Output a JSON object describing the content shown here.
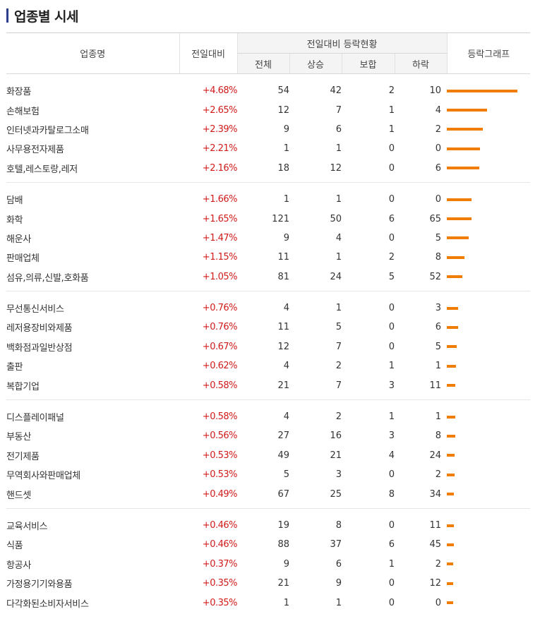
{
  "page_title": "업종별 시세",
  "table": {
    "col_name": "업종명",
    "col_change": "전일대비",
    "col_group": "전일대비 등락현황",
    "col_total": "전체",
    "col_up": "상승",
    "col_flat": "보합",
    "col_down": "하락",
    "col_graph": "등락그래프",
    "groups": [
      [
        {
          "name": "화장품",
          "change": "+4.68%",
          "total": "54",
          "up": "42",
          "flat": "2",
          "down": "10",
          "pct": 4.68
        },
        {
          "name": "손해보험",
          "change": "+2.65%",
          "total": "12",
          "up": "7",
          "flat": "1",
          "down": "4",
          "pct": 2.65
        },
        {
          "name": "인터넷과카탈로그소매",
          "change": "+2.39%",
          "total": "9",
          "up": "6",
          "flat": "1",
          "down": "2",
          "pct": 2.39
        },
        {
          "name": "사무용전자제품",
          "change": "+2.21%",
          "total": "1",
          "up": "1",
          "flat": "0",
          "down": "0",
          "pct": 2.21
        },
        {
          "name": "호텔,레스토랑,레저",
          "change": "+2.16%",
          "total": "18",
          "up": "12",
          "flat": "0",
          "down": "6",
          "pct": 2.16
        }
      ],
      [
        {
          "name": "담배",
          "change": "+1.66%",
          "total": "1",
          "up": "1",
          "flat": "0",
          "down": "0",
          "pct": 1.66
        },
        {
          "name": "화학",
          "change": "+1.65%",
          "total": "121",
          "up": "50",
          "flat": "6",
          "down": "65",
          "pct": 1.65
        },
        {
          "name": "해운사",
          "change": "+1.47%",
          "total": "9",
          "up": "4",
          "flat": "0",
          "down": "5",
          "pct": 1.47
        },
        {
          "name": "판매업체",
          "change": "+1.15%",
          "total": "11",
          "up": "1",
          "flat": "2",
          "down": "8",
          "pct": 1.15
        },
        {
          "name": "섬유,의류,신발,호화품",
          "change": "+1.05%",
          "total": "81",
          "up": "24",
          "flat": "5",
          "down": "52",
          "pct": 1.05
        }
      ],
      [
        {
          "name": "무선통신서비스",
          "change": "+0.76%",
          "total": "4",
          "up": "1",
          "flat": "0",
          "down": "3",
          "pct": 0.76
        },
        {
          "name": "레저용장비와제품",
          "change": "+0.76%",
          "total": "11",
          "up": "5",
          "flat": "0",
          "down": "6",
          "pct": 0.76
        },
        {
          "name": "백화점과일반상점",
          "change": "+0.67%",
          "total": "12",
          "up": "7",
          "flat": "0",
          "down": "5",
          "pct": 0.67
        },
        {
          "name": "출판",
          "change": "+0.62%",
          "total": "4",
          "up": "2",
          "flat": "1",
          "down": "1",
          "pct": 0.62
        },
        {
          "name": "복합기업",
          "change": "+0.58%",
          "total": "21",
          "up": "7",
          "flat": "3",
          "down": "11",
          "pct": 0.58
        }
      ],
      [
        {
          "name": "디스플레이패널",
          "change": "+0.58%",
          "total": "4",
          "up": "2",
          "flat": "1",
          "down": "1",
          "pct": 0.58
        },
        {
          "name": "부동산",
          "change": "+0.56%",
          "total": "27",
          "up": "16",
          "flat": "3",
          "down": "8",
          "pct": 0.56
        },
        {
          "name": "전기제품",
          "change": "+0.53%",
          "total": "49",
          "up": "21",
          "flat": "4",
          "down": "24",
          "pct": 0.53
        },
        {
          "name": "무역회사와판매업체",
          "change": "+0.53%",
          "total": "5",
          "up": "3",
          "flat": "0",
          "down": "2",
          "pct": 0.53
        },
        {
          "name": "핸드셋",
          "change": "+0.49%",
          "total": "67",
          "up": "25",
          "flat": "8",
          "down": "34",
          "pct": 0.49
        }
      ],
      [
        {
          "name": "교육서비스",
          "change": "+0.46%",
          "total": "19",
          "up": "8",
          "flat": "0",
          "down": "11",
          "pct": 0.46
        },
        {
          "name": "식품",
          "change": "+0.46%",
          "total": "88",
          "up": "37",
          "flat": "6",
          "down": "45",
          "pct": 0.46
        },
        {
          "name": "항공사",
          "change": "+0.37%",
          "total": "9",
          "up": "6",
          "flat": "1",
          "down": "2",
          "pct": 0.37
        },
        {
          "name": "가정용기기와용품",
          "change": "+0.35%",
          "total": "21",
          "up": "9",
          "flat": "0",
          "down": "12",
          "pct": 0.35
        },
        {
          "name": "다각화된소비자서비스",
          "change": "+0.35%",
          "total": "1",
          "up": "1",
          "flat": "0",
          "down": "0",
          "pct": 0.35
        }
      ]
    ]
  },
  "colors": {
    "rise": "#d11a1a",
    "bar": "#f07d00",
    "title_mark": "#2e3c8c"
  }
}
